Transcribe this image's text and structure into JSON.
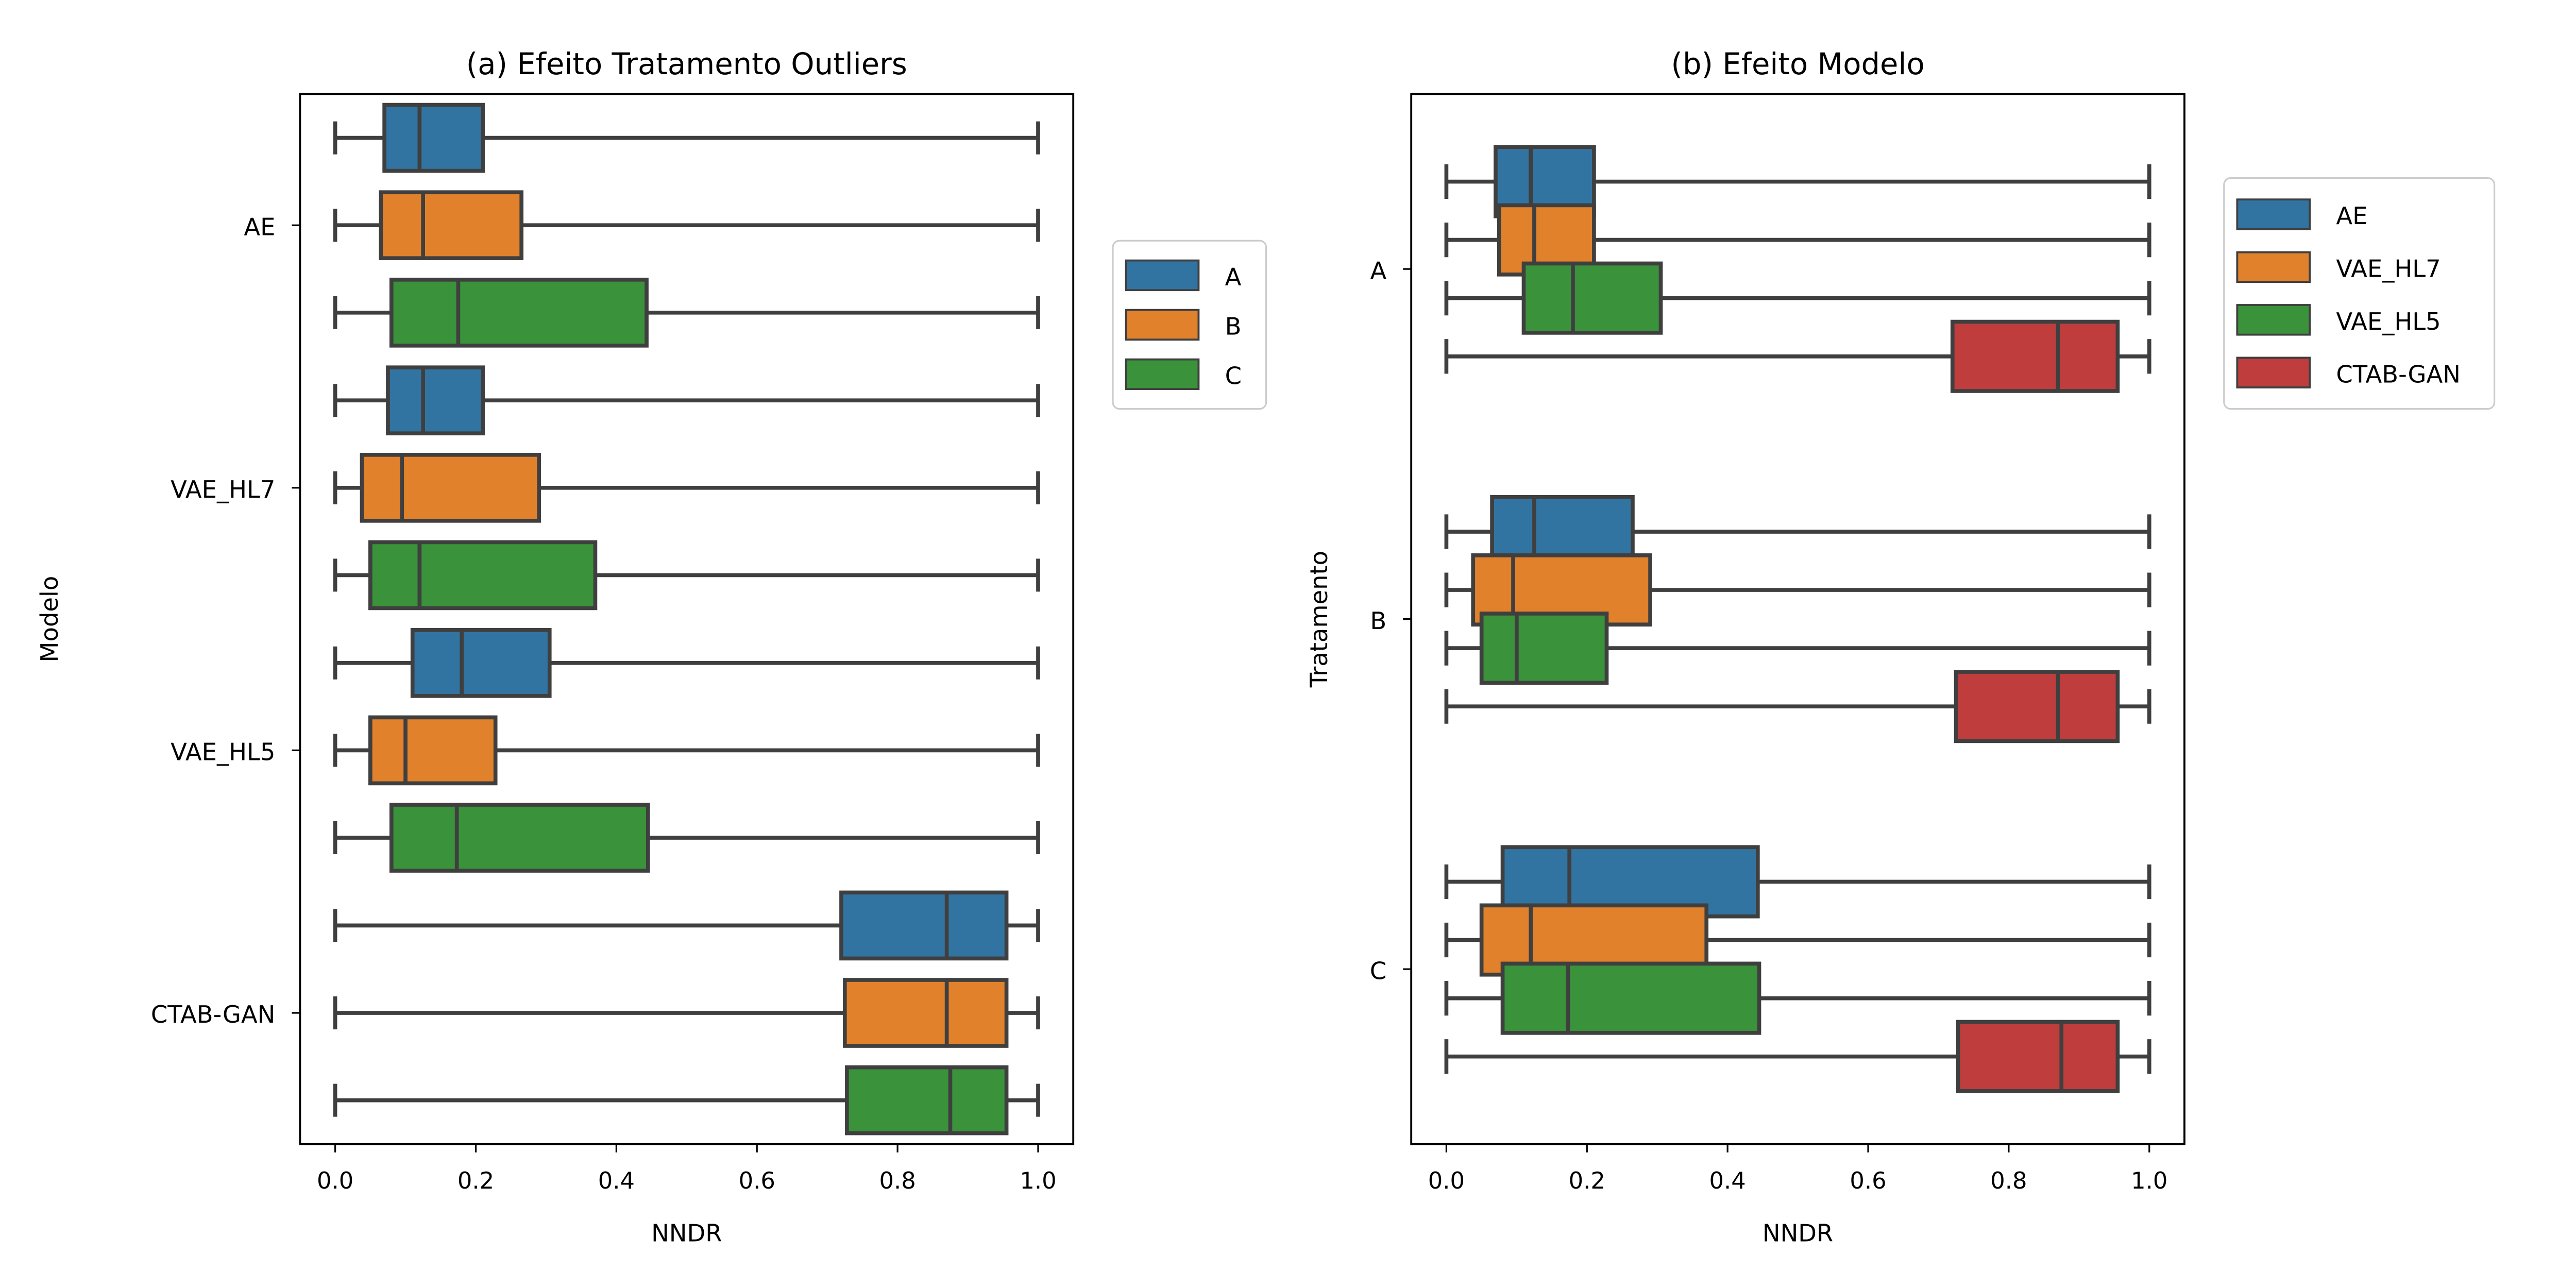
{
  "colors": {
    "AE": "#3274a1",
    "VAE_HL7": "#e1812c",
    "VAE_HL5": "#3a923a",
    "CTAB-GAN": "#c03d3e",
    "A": "#3274a1",
    "B": "#e1812c",
    "C": "#3a923a",
    "edge": "#3f3f3f"
  },
  "chart_data": [
    {
      "type": "box",
      "orientation": "horizontal",
      "title": "(a) Efeito Tratamento Outliers",
      "xlabel": "NNDR",
      "ylabel": "Modelo",
      "xlim": [
        -0.05,
        1.05
      ],
      "xticks": [
        "0.0",
        "0.2",
        "0.4",
        "0.6",
        "0.8",
        "1.0"
      ],
      "categories": [
        "AE",
        "VAE_HL7",
        "VAE_HL5",
        "CTAB-GAN"
      ],
      "legend": {
        "position": "outside-right",
        "entries": [
          "A",
          "B",
          "C"
        ]
      },
      "series": [
        {
          "name": "A",
          "boxes": [
            {
              "min": 0.0,
              "q1": 0.07,
              "median": 0.12,
              "q3": 0.21,
              "max": 1.0
            },
            {
              "min": 0.0,
              "q1": 0.075,
              "median": 0.125,
              "q3": 0.21,
              "max": 1.0
            },
            {
              "min": 0.0,
              "q1": 0.11,
              "median": 0.18,
              "q3": 0.305,
              "max": 1.0
            },
            {
              "min": 0.0,
              "q1": 0.72,
              "median": 0.87,
              "q3": 0.955,
              "max": 1.0
            }
          ]
        },
        {
          "name": "B",
          "boxes": [
            {
              "min": 0.0,
              "q1": 0.065,
              "median": 0.125,
              "q3": 0.265,
              "max": 1.0
            },
            {
              "min": 0.0,
              "q1": 0.038,
              "median": 0.095,
              "q3": 0.29,
              "max": 1.0
            },
            {
              "min": 0.0,
              "q1": 0.05,
              "median": 0.1,
              "q3": 0.228,
              "max": 1.0
            },
            {
              "min": 0.0,
              "q1": 0.725,
              "median": 0.87,
              "q3": 0.955,
              "max": 1.0
            }
          ]
        },
        {
          "name": "C",
          "boxes": [
            {
              "min": 0.0,
              "q1": 0.08,
              "median": 0.175,
              "q3": 0.443,
              "max": 1.0
            },
            {
              "min": 0.0,
              "q1": 0.05,
              "median": 0.12,
              "q3": 0.37,
              "max": 1.0
            },
            {
              "min": 0.0,
              "q1": 0.08,
              "median": 0.173,
              "q3": 0.445,
              "max": 1.0
            },
            {
              "min": 0.0,
              "q1": 0.728,
              "median": 0.875,
              "q3": 0.955,
              "max": 1.0
            }
          ]
        }
      ]
    },
    {
      "type": "box",
      "orientation": "horizontal",
      "title": "(b) Efeito Modelo",
      "xlabel": "NNDR",
      "ylabel": "Tratamento",
      "xlim": [
        -0.05,
        1.05
      ],
      "xticks": [
        "0.0",
        "0.2",
        "0.4",
        "0.6",
        "0.8",
        "1.0"
      ],
      "categories": [
        "A",
        "B",
        "C"
      ],
      "legend": {
        "position": "outside-right",
        "entries": [
          "AE",
          "VAE_HL7",
          "VAE_HL5",
          "CTAB-GAN"
        ]
      },
      "series": [
        {
          "name": "AE",
          "boxes": [
            {
              "min": 0.0,
              "q1": 0.07,
              "median": 0.12,
              "q3": 0.21,
              "max": 1.0
            },
            {
              "min": 0.0,
              "q1": 0.065,
              "median": 0.125,
              "q3": 0.265,
              "max": 1.0
            },
            {
              "min": 0.0,
              "q1": 0.08,
              "median": 0.175,
              "q3": 0.443,
              "max": 1.0
            }
          ]
        },
        {
          "name": "VAE_HL7",
          "boxes": [
            {
              "min": 0.0,
              "q1": 0.075,
              "median": 0.125,
              "q3": 0.21,
              "max": 1.0
            },
            {
              "min": 0.0,
              "q1": 0.038,
              "median": 0.095,
              "q3": 0.29,
              "max": 1.0
            },
            {
              "min": 0.0,
              "q1": 0.05,
              "median": 0.12,
              "q3": 0.37,
              "max": 1.0
            }
          ]
        },
        {
          "name": "VAE_HL5",
          "boxes": [
            {
              "min": 0.0,
              "q1": 0.11,
              "median": 0.18,
              "q3": 0.305,
              "max": 1.0
            },
            {
              "min": 0.0,
              "q1": 0.05,
              "median": 0.1,
              "q3": 0.228,
              "max": 1.0
            },
            {
              "min": 0.0,
              "q1": 0.08,
              "median": 0.173,
              "q3": 0.445,
              "max": 1.0
            }
          ]
        },
        {
          "name": "CTAB-GAN",
          "boxes": [
            {
              "min": 0.0,
              "q1": 0.72,
              "median": 0.87,
              "q3": 0.955,
              "max": 1.0
            },
            {
              "min": 0.0,
              "q1": 0.725,
              "median": 0.87,
              "q3": 0.955,
              "max": 1.0
            },
            {
              "min": 0.0,
              "q1": 0.728,
              "median": 0.875,
              "q3": 0.955,
              "max": 1.0
            }
          ]
        }
      ]
    }
  ]
}
